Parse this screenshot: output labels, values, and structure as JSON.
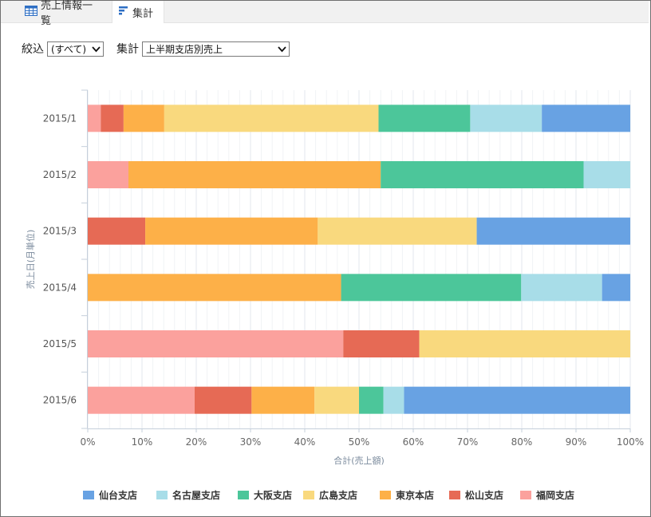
{
  "tabs": [
    {
      "label": "売上情報一覧",
      "icon": "table-icon"
    },
    {
      "label": "集計",
      "icon": "bar-chart-icon"
    }
  ],
  "filters": {
    "narrow_label": "絞込",
    "narrow_value": "(すべて)",
    "aggregate_label": "集計",
    "aggregate_value": "上半期支店別売上"
  },
  "chart_data": {
    "type": "bar",
    "orientation": "horizontal",
    "stacked": "percent",
    "ylabel": "売上日(月単位)",
    "xlabel": "合計(売上額)",
    "categories": [
      "2015/1",
      "2015/2",
      "2015/3",
      "2015/4",
      "2015/5",
      "2015/6"
    ],
    "xticks": [
      "0%",
      "10%",
      "20%",
      "30%",
      "40%",
      "50%",
      "60%",
      "70%",
      "80%",
      "90%",
      "100%"
    ],
    "xlim": [
      0,
      100
    ],
    "legend_position": "bottom",
    "series": [
      {
        "name": "福岡支店",
        "color": "#fba19d",
        "values": [
          2.4,
          7.5,
          0,
          0,
          47.1,
          19.7
        ]
      },
      {
        "name": "松山支店",
        "color": "#e66a55",
        "values": [
          4.2,
          0,
          10.6,
          0,
          14.0,
          10.5
        ]
      },
      {
        "name": "東京本店",
        "color": "#fdb048",
        "values": [
          7.5,
          46.5,
          31.8,
          46.7,
          0,
          11.6
        ]
      },
      {
        "name": "広島支店",
        "color": "#f9d97e",
        "values": [
          39.5,
          0,
          29.3,
          0,
          38.9,
          8.2
        ]
      },
      {
        "name": "大阪支店",
        "color": "#4cc69a",
        "values": [
          16.9,
          37.4,
          0,
          33.2,
          0,
          4.5
        ]
      },
      {
        "name": "名古屋支店",
        "color": "#a8dde8",
        "values": [
          13.2,
          8.6,
          0,
          14.9,
          0,
          3.8
        ]
      },
      {
        "name": "仙台支店",
        "color": "#68a2e3",
        "values": [
          16.3,
          0,
          28.3,
          5.2,
          0,
          41.7
        ]
      }
    ],
    "legend": [
      "仙台支店",
      "名古屋支店",
      "大阪支店",
      "広島支店",
      "東京本店",
      "松山支店",
      "福岡支店"
    ]
  }
}
